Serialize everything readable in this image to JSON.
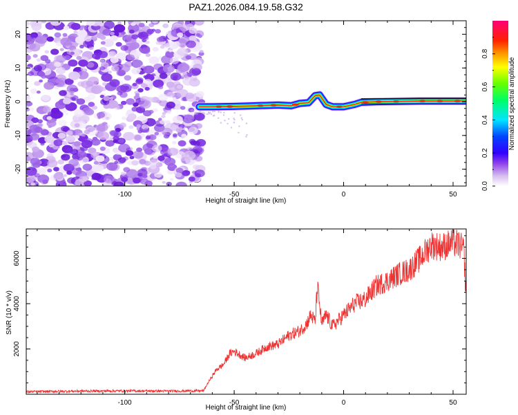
{
  "figure_title": "PAZ1.2026.084.19.58.G32",
  "chart_data": [
    {
      "type": "heatmap",
      "title": "PAZ1.2026.084.19.58.G32",
      "xlabel": "Height of straight line (km)",
      "ylabel": "Frequency (Hz)",
      "xlim": [
        -145,
        56
      ],
      "ylim": [
        -25,
        24
      ],
      "x_ticks": [
        -100,
        -50,
        0,
        50
      ],
      "y_ticks": [
        -20,
        -10,
        0,
        10,
        20
      ],
      "noise_region_x": [
        -145,
        -66
      ],
      "signal_region_x": [
        -66,
        56
      ],
      "ridge": {
        "x": [
          -66,
          -60,
          -50,
          -40,
          -30,
          -24,
          -20,
          -16,
          -13,
          -11,
          -8,
          -5,
          0,
          5,
          8,
          15,
          25,
          35,
          45,
          56
        ],
        "freq_hz": [
          -1.5,
          -1.5,
          -1.4,
          -1.2,
          -1.0,
          -1.2,
          -0.5,
          -0.3,
          1.8,
          2.0,
          -0.8,
          -1.5,
          -1.5,
          -0.8,
          -0.2,
          0.0,
          0.1,
          0.2,
          0.2,
          0.2
        ]
      },
      "colorbar": {
        "label": "Normalized spectral amplitude",
        "ticks": [
          "0.0",
          "0.2",
          "0.4",
          "0.6",
          "0.8"
        ],
        "range": [
          0,
          1
        ]
      }
    },
    {
      "type": "line",
      "xlabel": "Height of straight line (km)",
      "ylabel": "SNR (10 * v/v)",
      "xlim": [
        -145,
        56
      ],
      "ylim": [
        0,
        7300
      ],
      "x_ticks": [
        -100,
        -50,
        0,
        50
      ],
      "y_ticks": [
        2000,
        4000,
        6000
      ],
      "series": [
        {
          "name": "SNR",
          "color": "#ee3333",
          "x": [
            -145,
            -120,
            -100,
            -80,
            -68,
            -64,
            -62,
            -58,
            -55,
            -52,
            -50,
            -45,
            -40,
            -35,
            -30,
            -25,
            -20,
            -17,
            -15,
            -13,
            -12,
            -10,
            -8,
            -5,
            0,
            5,
            10,
            15,
            20,
            25,
            30,
            35,
            40,
            45,
            50,
            53,
            55,
            56
          ],
          "values": [
            110,
            140,
            150,
            140,
            150,
            150,
            500,
            1100,
            1300,
            1800,
            1900,
            1600,
            1800,
            2100,
            2200,
            2600,
            2800,
            3100,
            3500,
            3200,
            4800,
            3100,
            3500,
            3000,
            3500,
            4000,
            4200,
            4800,
            5000,
            5300,
            5500,
            6000,
            6600,
            6500,
            6700,
            6600,
            6300,
            4000
          ]
        }
      ]
    }
  ]
}
